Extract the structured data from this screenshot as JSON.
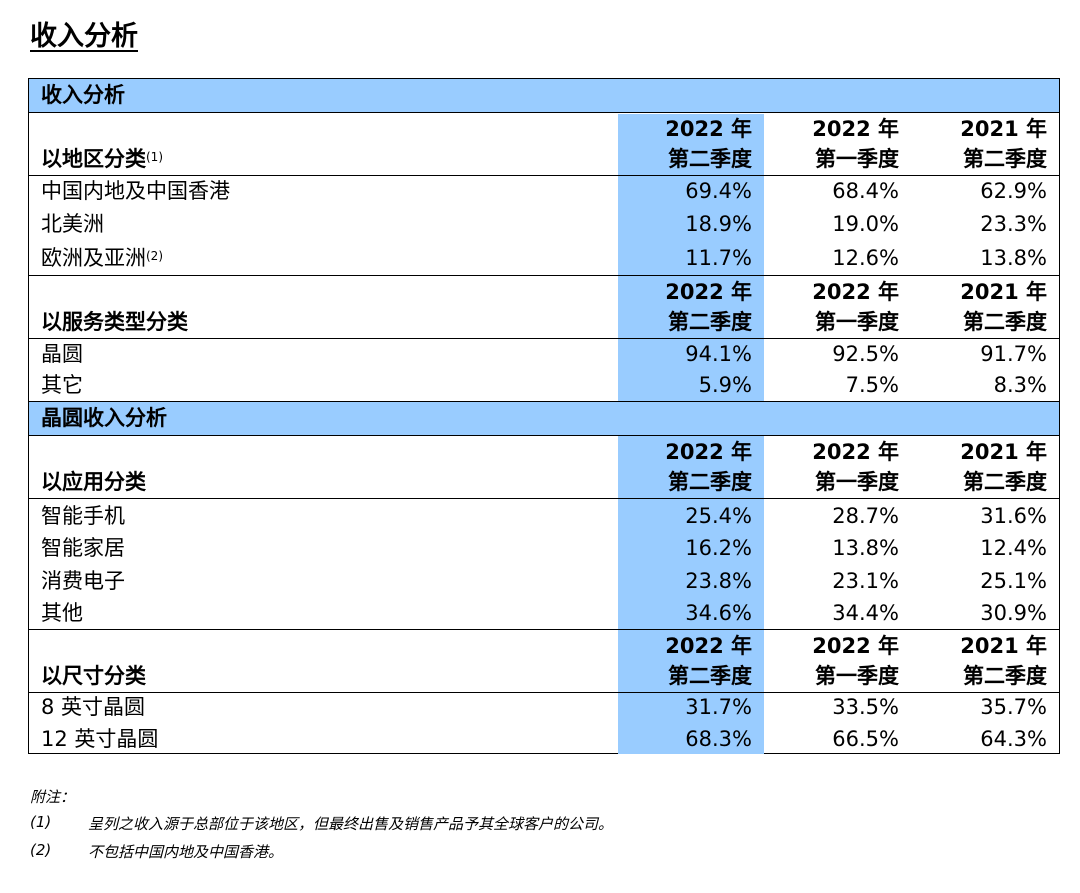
{
  "page_title": "收入分析",
  "col_headers": {
    "c1": {
      "year": "2022 年",
      "quarter": "第二季度"
    },
    "c2": {
      "year": "2022 年",
      "quarter": "第一季度"
    },
    "c3": {
      "year": "2021 年",
      "quarter": "第二季度"
    }
  },
  "section1": {
    "title": "收入分析",
    "region": {
      "label": "以地区分类",
      "label_sup": "(1)",
      "rows": [
        {
          "label": "中国内地及中国香港",
          "sup": "",
          "values": [
            "69.4%",
            "68.4%",
            "62.9%"
          ]
        },
        {
          "label": "北美洲",
          "sup": "",
          "values": [
            "18.9%",
            "19.0%",
            "23.3%"
          ]
        },
        {
          "label": "欧洲及亚洲",
          "sup": "(2)",
          "values": [
            "11.7%",
            "12.6%",
            "13.8%"
          ]
        }
      ]
    },
    "service": {
      "label": "以服务类型分类",
      "rows": [
        {
          "label": "晶圆",
          "values": [
            "94.1%",
            "92.5%",
            "91.7%"
          ]
        },
        {
          "label": "其它",
          "values": [
            "5.9%",
            "7.5%",
            "8.3%"
          ]
        }
      ]
    }
  },
  "section2": {
    "title": "晶圆收入分析",
    "application": {
      "label": "以应用分类",
      "rows": [
        {
          "label": "智能手机",
          "values": [
            "25.4%",
            "28.7%",
            "31.6%"
          ]
        },
        {
          "label": "智能家居",
          "values": [
            "16.2%",
            "13.8%",
            "12.4%"
          ]
        },
        {
          "label": "消费电子",
          "values": [
            "23.8%",
            "23.1%",
            "25.1%"
          ]
        },
        {
          "label": "其他",
          "values": [
            "34.6%",
            "34.4%",
            "30.9%"
          ]
        }
      ]
    },
    "size": {
      "label": "以尺寸分类",
      "rows": [
        {
          "label": "8 英寸晶圆",
          "values": [
            "31.7%",
            "33.5%",
            "35.7%"
          ]
        },
        {
          "label": "12 英寸晶圆",
          "values": [
            "68.3%",
            "66.5%",
            "64.3%"
          ]
        }
      ]
    }
  },
  "notes": {
    "heading": "附注：",
    "items": [
      {
        "num": "(1)",
        "text": "呈列之收入源于总部位于该地区，但最终出售及销售产品予其全球客户的公司。"
      },
      {
        "num": "(2)",
        "text": "不包括中国内地及中国香港。"
      }
    ]
  }
}
